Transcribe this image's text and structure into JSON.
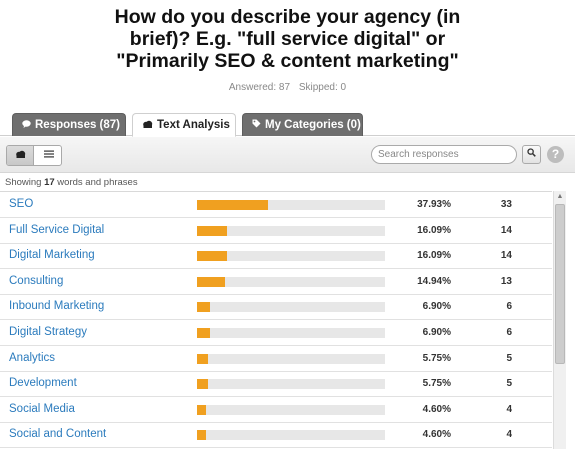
{
  "question": {
    "lines": [
      "How do you describe your agency (in",
      "brief)? E.g. \"full service digital\" or",
      "\"Primarily SEO & content marketing\""
    ]
  },
  "counts": {
    "answered": "Answered: 87",
    "skipped": "Skipped: 0"
  },
  "tabs": [
    {
      "label": "Responses (87)",
      "icon": "speech-bubble-icon"
    },
    {
      "label": "Text Analysis",
      "icon": "cloud-icon"
    },
    {
      "label": "My Categories (0)",
      "icon": "tag-icon"
    }
  ],
  "toolbar": {
    "view_cloud_icon": "cloud-icon",
    "view_list_icon": "list-icon",
    "search_placeholder": "Search responses",
    "search_value": "",
    "search_button_icon": "magnifier-icon",
    "help_label": "?"
  },
  "showing": {
    "prefix": "Showing ",
    "count": "17",
    "suffix": " words and phrases"
  },
  "colors": {
    "bar_fill": "#f0a020",
    "bar_track": "#e7e7e7",
    "link": "#2b7bbd",
    "tab_dark": "#6f6f6f"
  },
  "rows": [
    {
      "term": "SEO",
      "percent_label": "37.93%",
      "count": "33",
      "share": 0.3793
    },
    {
      "term": "Full Service Digital",
      "percent_label": "16.09%",
      "count": "14",
      "share": 0.1609
    },
    {
      "term": "Digital Marketing",
      "percent_label": "16.09%",
      "count": "14",
      "share": 0.1609
    },
    {
      "term": "Consulting",
      "percent_label": "14.94%",
      "count": "13",
      "share": 0.1494
    },
    {
      "term": "Inbound Marketing",
      "percent_label": "6.90%",
      "count": "6",
      "share": 0.069
    },
    {
      "term": "Digital Strategy",
      "percent_label": "6.90%",
      "count": "6",
      "share": 0.069
    },
    {
      "term": "Analytics",
      "percent_label": "5.75%",
      "count": "5",
      "share": 0.0575
    },
    {
      "term": "Development",
      "percent_label": "5.75%",
      "count": "5",
      "share": 0.0575
    },
    {
      "term": "Social Media",
      "percent_label": "4.60%",
      "count": "4",
      "share": 0.046
    },
    {
      "term": "Social and Content",
      "percent_label": "4.60%",
      "count": "4",
      "share": 0.046
    }
  ]
}
